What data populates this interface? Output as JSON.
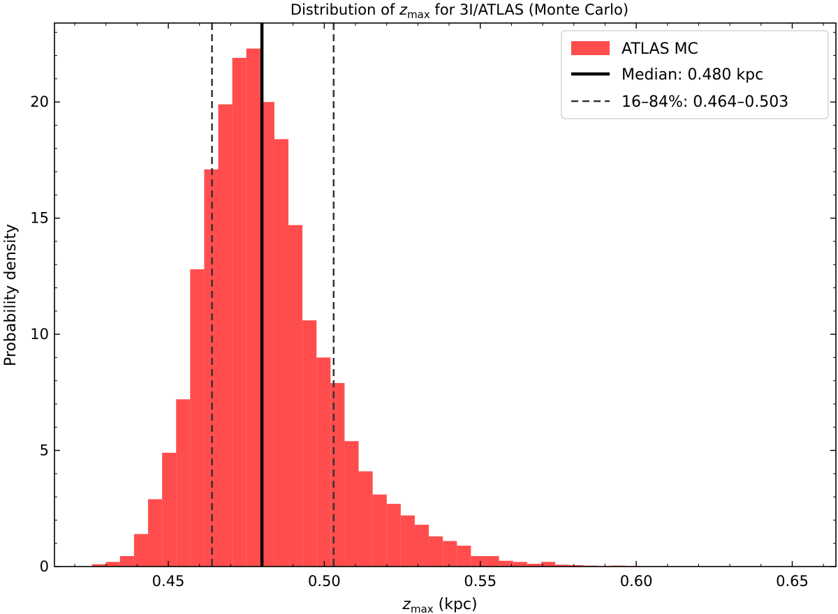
{
  "chart_data": {
    "type": "bar",
    "title": {
      "prefix": "Distribution of ",
      "symbol": "z",
      "subscript": "max",
      "suffix": " for 3I/ATLAS (Monte Carlo)"
    },
    "xlabel": {
      "symbol": "z",
      "subscript": "max",
      "suffix": " (kpc)"
    },
    "ylabel": "Probability density",
    "xlim": [
      0.4135,
      0.664
    ],
    "ylim": [
      0,
      23.4
    ],
    "xticks": [
      {
        "value": 0.45,
        "label": "0.45"
      },
      {
        "value": 0.5,
        "label": "0.50"
      },
      {
        "value": 0.55,
        "label": "0.55"
      },
      {
        "value": 0.6,
        "label": "0.60"
      },
      {
        "value": 0.65,
        "label": "0.65"
      }
    ],
    "yticks": [
      {
        "value": 0,
        "label": "0"
      },
      {
        "value": 5,
        "label": "5"
      },
      {
        "value": 10,
        "label": "10"
      },
      {
        "value": 15,
        "label": "15"
      },
      {
        "value": 20,
        "label": "20"
      }
    ],
    "grid": false,
    "legend_position": "top-right",
    "bin_start": 0.4255,
    "bin_width": 0.0045,
    "series": [
      {
        "name": "ATLAS MC",
        "color": "#ff4d4d",
        "densities": [
          0.1,
          0.2,
          0.45,
          1.4,
          2.9,
          4.9,
          7.2,
          12.8,
          17.1,
          19.9,
          21.9,
          22.3,
          20.0,
          18.4,
          14.7,
          10.6,
          9.0,
          7.9,
          5.4,
          4.1,
          3.1,
          2.7,
          2.2,
          1.8,
          1.3,
          1.1,
          0.9,
          0.45,
          0.45,
          0.25,
          0.2,
          0.12,
          0.2,
          0.08,
          0.06,
          0.04,
          0.03,
          0.04,
          0.03,
          0.02,
          0.02,
          0.01,
          0.01,
          0.01,
          0.01,
          0.01,
          0.01,
          0.005,
          0.005,
          0.005
        ]
      }
    ],
    "lines": [
      {
        "name": "Median: 0.480 kpc",
        "x": 0.48,
        "style": "solid",
        "color": "#000000"
      },
      {
        "name": "16–84%: 0.464–0.503",
        "x": 0.464,
        "style": "dashed",
        "color": "#333333"
      },
      {
        "name": "",
        "x": 0.503,
        "style": "dashed",
        "color": "#333333"
      }
    ]
  }
}
